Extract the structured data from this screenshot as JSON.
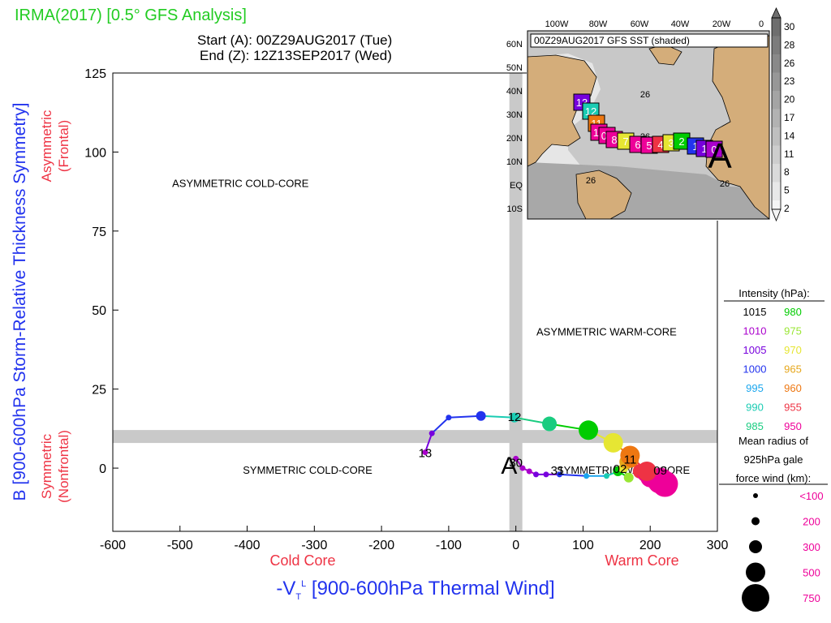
{
  "header": {
    "title": "IRMA(2017) [0.5° GFS Analysis]",
    "start": "Start (A): 00Z29AUG2017 (Tue)",
    "end": "End (Z): 12Z13SEP2017 (Wed)"
  },
  "chart_data": {
    "type": "scatter",
    "title": "IRMA(2017) [0.5° GFS Analysis]",
    "xlabel": "-V_T^L [900-600hPa Thermal Wind]",
    "ylabel": "B [900-600hPa Storm-Relative Thickness Symmetry]",
    "xlim": [
      -600,
      300
    ],
    "ylim": [
      -20,
      125
    ],
    "x_ticks": [
      -600,
      -500,
      -400,
      -300,
      -200,
      -100,
      0,
      100,
      200,
      300
    ],
    "y_ticks": [
      0,
      25,
      50,
      75,
      100,
      125
    ],
    "x_tick_labels": [
      "-600",
      "-500",
      "-400",
      "-300",
      "-200",
      "-100",
      "0",
      "100",
      "200",
      "300"
    ],
    "y_tick_labels": [
      "0",
      "25",
      "50",
      "75",
      "100",
      "125"
    ],
    "x_side_labels": {
      "left": "Cold Core",
      "right": "Warm Core"
    },
    "y_side_labels": {
      "upper": "Asymmetric",
      "upper_sub": "(Frontal)",
      "lower": "Symmetric",
      "lower_sub": "(Nonfrontal)"
    },
    "quadrant_labels": [
      "ASYMMETRIC COLD-CORE",
      "ASYMMETRIC WARM-CORE",
      "SYMMETRIC COLD-CORE",
      "SYMMETRIC WARM-CORE"
    ],
    "thresholds": {
      "x": 0,
      "y": 10
    },
    "start_marker": "A",
    "series": [
      {
        "points": [
          {
            "x": 0,
            "y": 3,
            "p": 1010,
            "r": 100
          },
          {
            "x": 10,
            "y": 0,
            "p": 1010,
            "r": 100
          },
          {
            "x": 20,
            "y": -1,
            "p": 1010,
            "r": 100
          },
          {
            "x": 30,
            "y": -2,
            "p": 1005,
            "r": 100
          },
          {
            "x": 45,
            "y": -2,
            "p": 1005,
            "r": 100
          },
          {
            "x": 65,
            "y": -2,
            "p": 1000,
            "r": 100
          },
          {
            "x": 105,
            "y": -2.5,
            "p": 995,
            "r": 100
          },
          {
            "x": 135,
            "y": -2.5,
            "p": 990,
            "r": 100
          },
          {
            "x": 152,
            "y": -1,
            "p": 980,
            "r": 200
          },
          {
            "x": 168,
            "y": -3,
            "p": 975,
            "r": 200
          },
          {
            "x": 160,
            "y": 0,
            "p": 970,
            "r": 200
          },
          {
            "x": 165,
            "y": 2,
            "p": 965,
            "r": 300
          },
          {
            "x": 172,
            "y": 2.5,
            "p": 960,
            "r": 300
          },
          {
            "x": 185,
            "y": -1,
            "p": 955,
            "r": 300
          },
          {
            "x": 192,
            "y": -2,
            "p": 950,
            "r": 300
          },
          {
            "x": 200,
            "y": -3,
            "p": 950,
            "r": 500
          },
          {
            "x": 210,
            "y": -3.5,
            "p": 950,
            "r": 500
          },
          {
            "x": 215,
            "y": -4,
            "p": 950,
            "r": 750
          },
          {
            "x": 222,
            "y": -5,
            "p": 950,
            "r": 750
          },
          {
            "x": 195,
            "y": -1,
            "p": 955,
            "r": 500
          },
          {
            "x": 170,
            "y": 4,
            "p": 960,
            "r": 500
          },
          {
            "x": 145,
            "y": 8,
            "p": 970,
            "r": 500
          },
          {
            "x": 108,
            "y": 12,
            "p": 980,
            "r": 500
          },
          {
            "x": 50,
            "y": 14,
            "p": 985,
            "r": 300
          },
          {
            "x": -2,
            "y": 16,
            "p": 990,
            "r": 200
          },
          {
            "x": -52,
            "y": 16.5,
            "p": 1000,
            "r": 200
          },
          {
            "x": -100,
            "y": 16,
            "p": 1000,
            "r": 100
          },
          {
            "x": -125,
            "y": 11,
            "p": 1005,
            "r": 100
          },
          {
            "x": -135,
            "y": 5,
            "p": 1010,
            "r": 100
          }
        ],
        "labels": [
          {
            "text": "30",
            "x": 0,
            "y": 2
          },
          {
            "text": "31",
            "x": 62,
            "y": -0.5
          },
          {
            "text": "02",
            "x": 155,
            "y": 0
          },
          {
            "text": "11",
            "x": 170,
            "y": 3
          },
          {
            "text": "09",
            "x": 215,
            "y": -0.5
          },
          {
            "text": "12",
            "x": -2,
            "y": 16.5
          },
          {
            "text": "13",
            "x": -135,
            "y": 5
          }
        ]
      }
    ],
    "intensity_legend": {
      "title": "Intensity (hPa):",
      "items": [
        {
          "p": "1015",
          "color": "#000000"
        },
        {
          "p": "980",
          "color": "#00cc00"
        },
        {
          "p": "1010",
          "color": "#aa00cc"
        },
        {
          "p": "975",
          "color": "#99e633"
        },
        {
          "p": "1005",
          "color": "#7700dd"
        },
        {
          "p": "970",
          "color": "#e6e633"
        },
        {
          "p": "1000",
          "color": "#2233ee"
        },
        {
          "p": "965",
          "color": "#e6a61a"
        },
        {
          "p": "995",
          "color": "#1aa6ee"
        },
        {
          "p": "960",
          "color": "#ee7711"
        },
        {
          "p": "990",
          "color": "#1accb3"
        },
        {
          "p": "955",
          "color": "#ee3344"
        },
        {
          "p": "985",
          "color": "#1acc80"
        },
        {
          "p": "950",
          "color": "#ee0099"
        }
      ]
    },
    "size_legend": {
      "title_lines": [
        "Mean radius of",
        "925hPa gale",
        "force wind (km):"
      ],
      "items": [
        {
          "label": "<100",
          "r": 100
        },
        {
          "label": "200",
          "r": 200
        },
        {
          "label": "300",
          "r": 300
        },
        {
          "label": "500",
          "r": 500
        },
        {
          "label": "750",
          "r": 750
        }
      ],
      "label_color": "#ee0099"
    },
    "inset_map": {
      "title": "00Z29AUG2017 GFS SST (shaded)",
      "lon_labels": [
        "100W",
        "80W",
        "60W",
        "40W",
        "20W",
        "0"
      ],
      "lat_labels": [
        "60N",
        "50N",
        "40N",
        "30N",
        "20N",
        "10N",
        "EQ",
        "10S"
      ],
      "colorbar_labels": [
        "30",
        "28",
        "26",
        "23",
        "20",
        "17",
        "14",
        "11",
        "8",
        "5",
        "2"
      ],
      "contour_labels": [
        "26",
        "26",
        "26",
        "26"
      ],
      "track_start": "A",
      "track_boxes": [
        {
          "text": "13",
          "color": "#7700dd"
        },
        {
          "text": "12",
          "color": "#1accb3"
        },
        {
          "text": "11",
          "color": "#ee7711"
        },
        {
          "text": "10",
          "color": "#ee0099"
        },
        {
          "text": "09",
          "color": "#ee0099"
        },
        {
          "text": "8",
          "color": "#ee0099"
        },
        {
          "text": "7",
          "color": "#e6e633"
        },
        {
          "text": "6",
          "color": "#ee0099"
        },
        {
          "text": "5",
          "color": "#ee0099"
        },
        {
          "text": "4",
          "color": "#ee3344"
        },
        {
          "text": "3",
          "color": "#e6e633"
        },
        {
          "text": "2",
          "color": "#00cc00"
        },
        {
          "text": "1",
          "color": "#2233ee"
        },
        {
          "text": "1",
          "color": "#7700dd"
        },
        {
          "text": "0",
          "color": "#aa00cc"
        }
      ]
    }
  }
}
